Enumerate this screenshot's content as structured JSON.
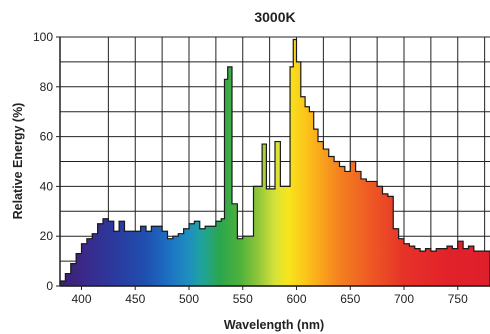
{
  "chart_data": {
    "type": "area",
    "title": "3000K",
    "xlabel": "Wavelength (nm)",
    "ylabel": "Relative Energy (%)",
    "xlim": [
      380,
      780
    ],
    "ylim": [
      0,
      100
    ],
    "x_ticks": [
      400,
      450,
      500,
      550,
      600,
      650,
      700,
      750
    ],
    "y_ticks": [
      0,
      20,
      40,
      60,
      80,
      100
    ],
    "grid": true,
    "fill": "visible-spectrum gradient",
    "x": [
      380,
      385,
      390,
      395,
      400,
      405,
      410,
      415,
      420,
      425,
      430,
      435,
      440,
      445,
      450,
      455,
      460,
      465,
      470,
      475,
      480,
      485,
      490,
      495,
      500,
      505,
      510,
      515,
      520,
      525,
      530,
      533,
      536,
      540,
      545,
      550,
      555,
      560,
      565,
      568,
      572,
      576,
      580,
      585,
      590,
      594,
      597,
      600,
      604,
      608,
      612,
      616,
      620,
      625,
      630,
      635,
      640,
      645,
      650,
      655,
      660,
      665,
      670,
      675,
      680,
      685,
      690,
      695,
      700,
      705,
      710,
      715,
      720,
      725,
      730,
      735,
      740,
      745,
      750,
      755,
      760,
      765,
      770,
      775,
      780
    ],
    "y": [
      2,
      5,
      9,
      13,
      17,
      19,
      21,
      25,
      27,
      26,
      22,
      26,
      22,
      22,
      22,
      24,
      22,
      24,
      24,
      22,
      19,
      20,
      21,
      23,
      25,
      26,
      23,
      24,
      24,
      26,
      27,
      83,
      88,
      33,
      19,
      20,
      20,
      40,
      40,
      57,
      39,
      39,
      58,
      40,
      40,
      88,
      99,
      90,
      76,
      72,
      70,
      63,
      58,
      55,
      52,
      50,
      48,
      46,
      50,
      46,
      43,
      42,
      42,
      40,
      37,
      36,
      23,
      19,
      17,
      16,
      15,
      14,
      15,
      14,
      15,
      15,
      16,
      15,
      18,
      15,
      16,
      14,
      14,
      14,
      13
    ]
  }
}
